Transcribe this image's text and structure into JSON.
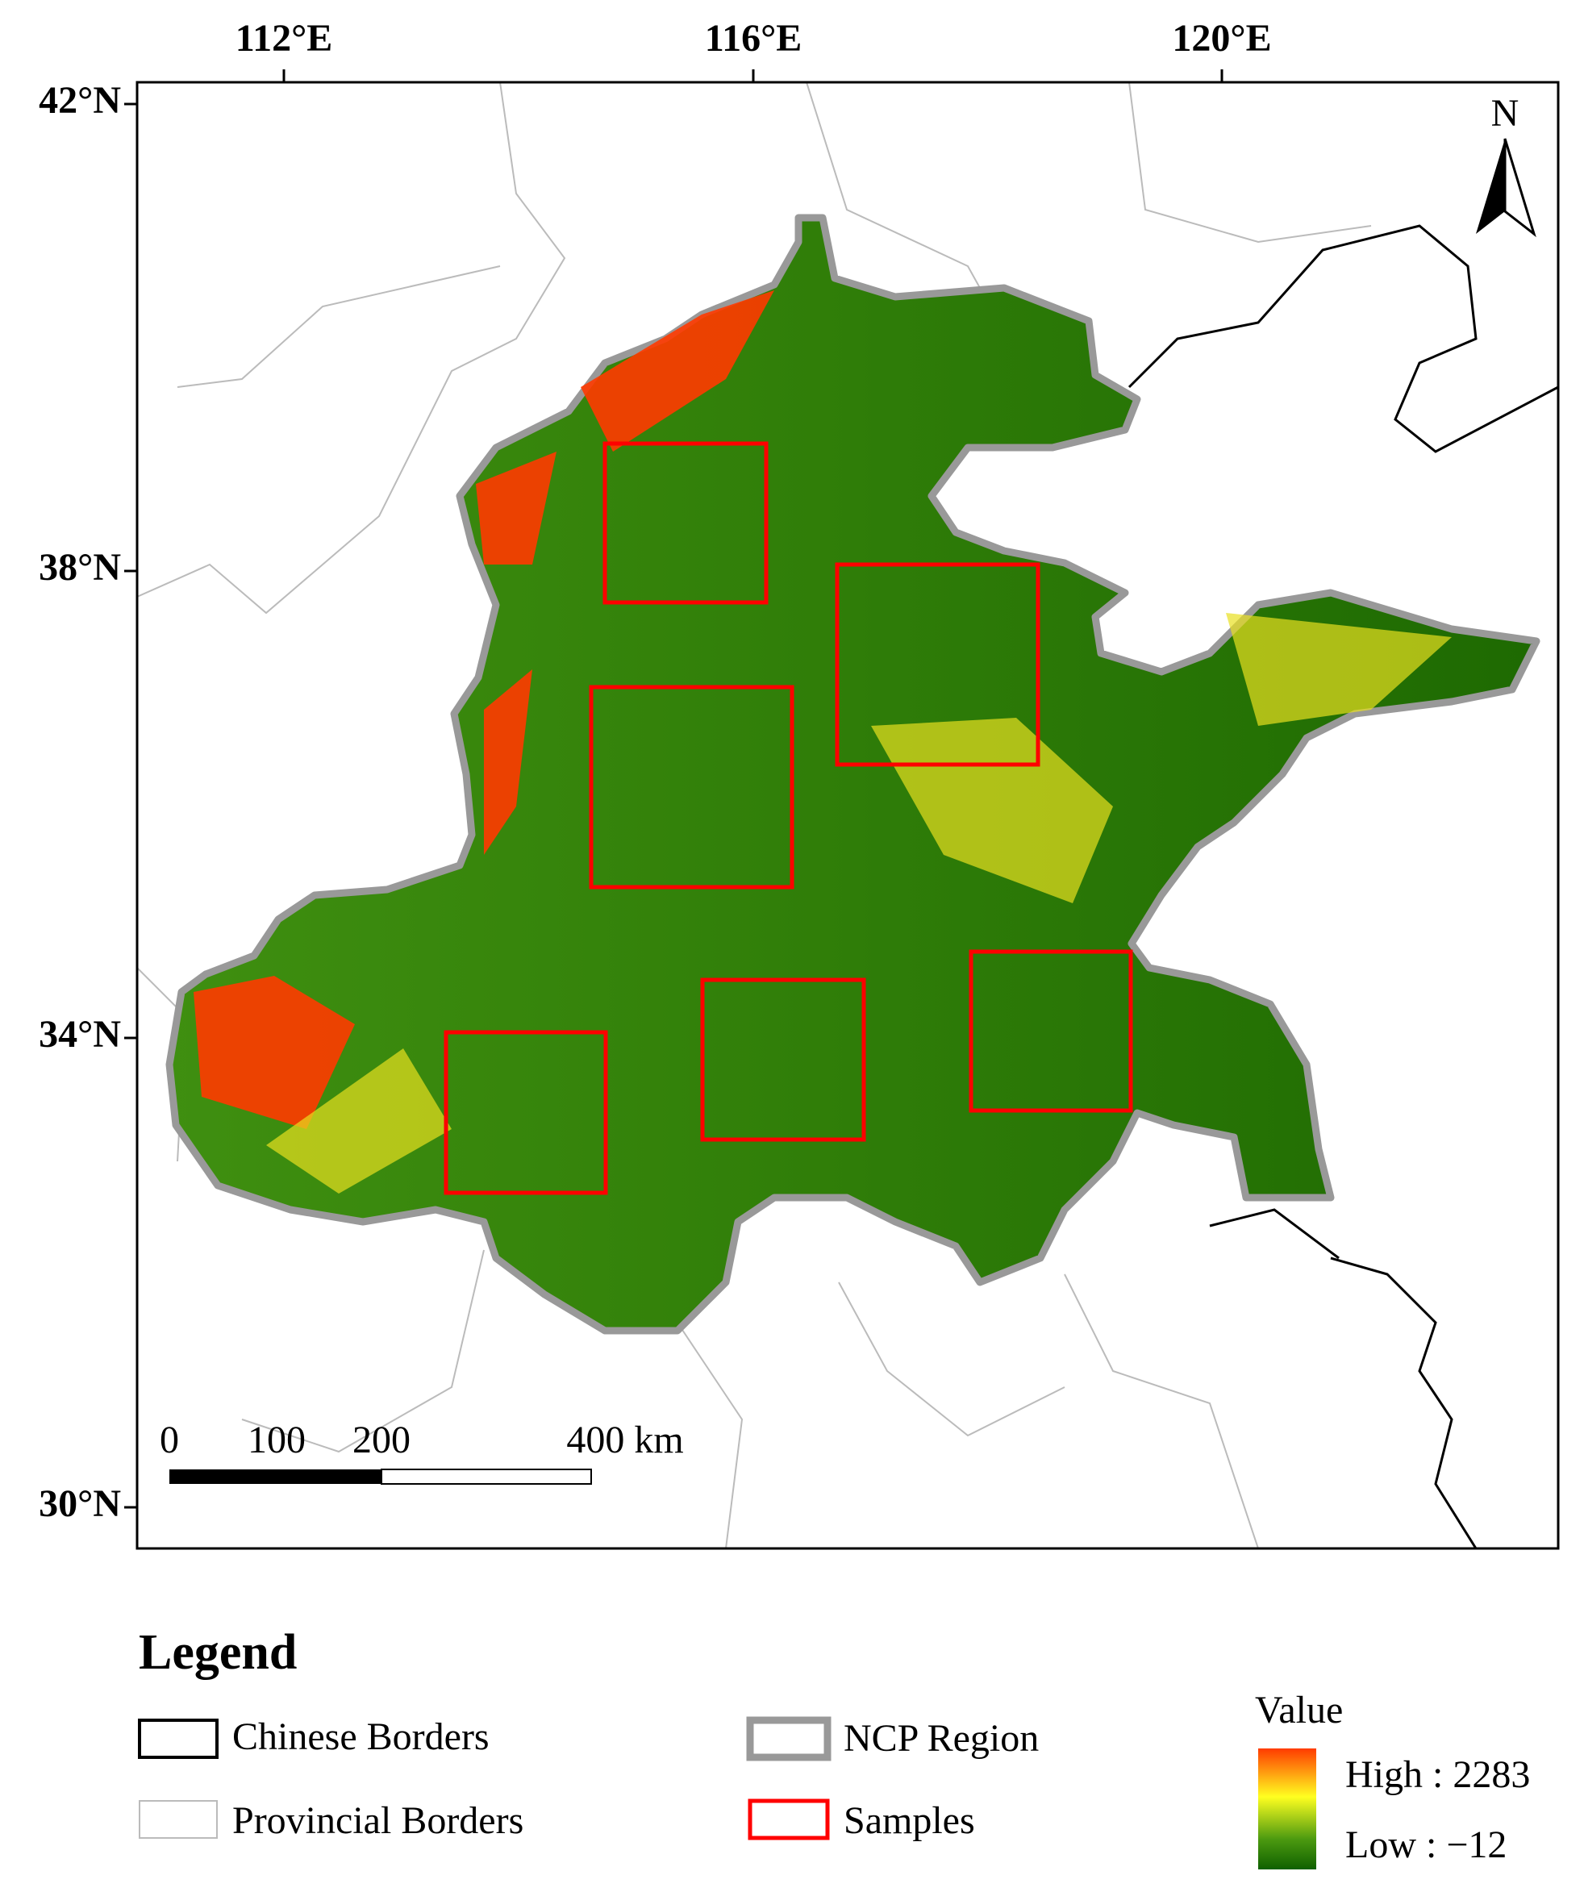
{
  "map": {
    "lon_ticks": [
      "112°E",
      "116°E",
      "120°E"
    ],
    "lat_ticks": [
      "42°N",
      "38°N",
      "34°N",
      "30°N"
    ],
    "north": "N",
    "scale_bar": [
      "0",
      "100",
      "200",
      "400 km"
    ]
  },
  "legend": {
    "title": "Legend",
    "items": [
      "Chinese Borders",
      "Provincial Borders",
      "NCP Region",
      "Samples"
    ],
    "ramp_title": "Value",
    "high": "High : 2283",
    "low": "Low : −12"
  }
}
